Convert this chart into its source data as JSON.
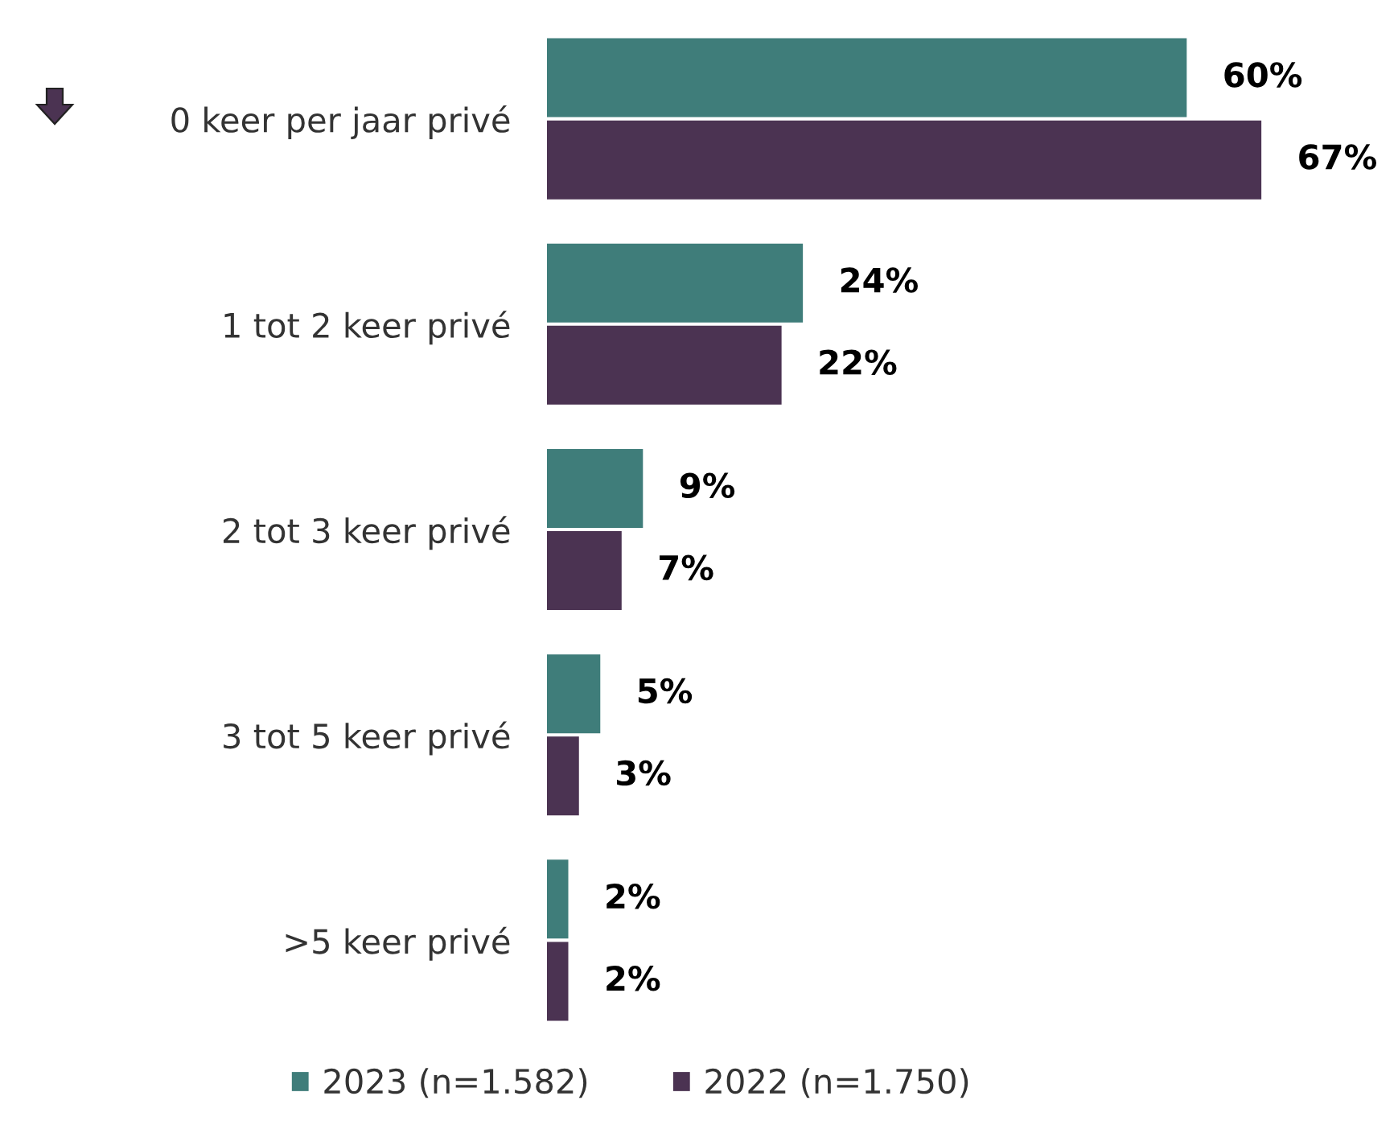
{
  "chart_data": {
    "type": "bar",
    "orientation": "horizontal",
    "categories": [
      "0 keer per jaar privé",
      "1 tot 2 keer privé",
      "2 tot 3 keer privé",
      "3 tot 5 keer privé",
      ">5 keer privé"
    ],
    "series": [
      {
        "name": "2023 (n=1.582)",
        "color": "#3f7d7a",
        "values": [
          60,
          24,
          9,
          5,
          2
        ],
        "value_labels": [
          "60%",
          "24%",
          "9%",
          "5%",
          "2%"
        ]
      },
      {
        "name": "2022 (n=1.750)",
        "color": "#4b3352",
        "values": [
          67,
          22,
          7,
          3,
          2
        ],
        "value_labels": [
          "67%",
          "22%",
          "7%",
          "3%",
          "2%"
        ]
      }
    ],
    "legend": "bottom",
    "grid": false
  }
}
